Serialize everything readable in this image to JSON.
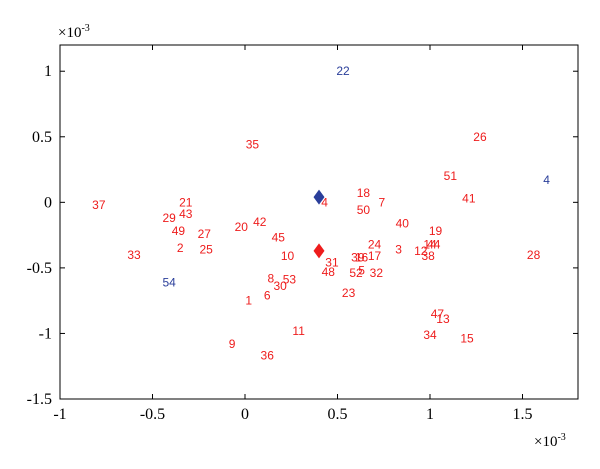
{
  "chart_data": {
    "type": "scatter",
    "xlim": [
      -1.0,
      1.8
    ],
    "ylim": [
      -1.5,
      1.2
    ],
    "x_ticks": [
      -1,
      -0.5,
      0,
      0.5,
      1,
      1.5
    ],
    "x_tick_labels": [
      "-1",
      "-0.5",
      "0",
      "0.5",
      "1",
      "1.5"
    ],
    "y_ticks": [
      -1.5,
      -1,
      -0.5,
      0,
      0.5,
      1
    ],
    "y_tick_labels": [
      "-1.5",
      "-1",
      "-0.5",
      "0",
      "0.5",
      "1"
    ],
    "x_exponent": "×10",
    "x_exponent_power": "-3",
    "y_exponent": "×10",
    "y_exponent_power": "-3",
    "grid": false,
    "colors": {
      "red": "#ee1c1c",
      "blue": "#2a3e9a"
    },
    "points": [
      {
        "label": "1",
        "x": 0.02,
        "y": -0.75,
        "color": "red"
      },
      {
        "label": "2",
        "x": -0.35,
        "y": -0.35,
        "color": "red"
      },
      {
        "label": "3",
        "x": 0.83,
        "y": -0.36,
        "color": "red"
      },
      {
        "label": "4",
        "x": 0.43,
        "y": 0.0,
        "color": "red"
      },
      {
        "label": "4",
        "x": 1.63,
        "y": 0.17,
        "color": "blue"
      },
      {
        "label": "5",
        "x": 0.63,
        "y": -0.52,
        "color": "red"
      },
      {
        "label": "6",
        "x": 0.12,
        "y": -0.71,
        "color": "red"
      },
      {
        "label": "7",
        "x": 0.74,
        "y": 0.0,
        "color": "red"
      },
      {
        "label": "8",
        "x": 0.14,
        "y": -0.58,
        "color": "red"
      },
      {
        "label": "9",
        "x": -0.07,
        "y": -1.08,
        "color": "red"
      },
      {
        "label": "10",
        "x": 0.23,
        "y": -0.41,
        "color": "red"
      },
      {
        "label": "11",
        "x": 0.29,
        "y": -0.98,
        "color": "red"
      },
      {
        "label": "12",
        "x": 0.95,
        "y": -0.37,
        "color": "red"
      },
      {
        "label": "13",
        "x": 1.07,
        "y": -0.89,
        "color": "red"
      },
      {
        "label": "14",
        "x": 1.0,
        "y": -0.32,
        "color": "red"
      },
      {
        "label": "15",
        "x": 1.2,
        "y": -1.04,
        "color": "red"
      },
      {
        "label": "16",
        "x": 0.63,
        "y": -0.42,
        "color": "red"
      },
      {
        "label": "17",
        "x": 0.7,
        "y": -0.41,
        "color": "red"
      },
      {
        "label": "18",
        "x": 0.64,
        "y": 0.07,
        "color": "red"
      },
      {
        "label": "19",
        "x": 1.03,
        "y": -0.22,
        "color": "red"
      },
      {
        "label": "20",
        "x": -0.02,
        "y": -0.19,
        "color": "red"
      },
      {
        "label": "21",
        "x": -0.32,
        "y": 0.0,
        "color": "red"
      },
      {
        "label": "22",
        "x": 0.53,
        "y": 1.0,
        "color": "blue"
      },
      {
        "label": "23",
        "x": 0.56,
        "y": -0.69,
        "color": "red"
      },
      {
        "label": "24",
        "x": 0.7,
        "y": -0.32,
        "color": "red"
      },
      {
        "label": "25",
        "x": -0.21,
        "y": -0.36,
        "color": "red"
      },
      {
        "label": "26",
        "x": 1.27,
        "y": 0.5,
        "color": "red"
      },
      {
        "label": "27",
        "x": -0.22,
        "y": -0.24,
        "color": "red"
      },
      {
        "label": "28",
        "x": 1.56,
        "y": -0.4,
        "color": "red"
      },
      {
        "label": "29",
        "x": -0.41,
        "y": -0.12,
        "color": "red"
      },
      {
        "label": "30",
        "x": 0.19,
        "y": -0.64,
        "color": "red"
      },
      {
        "label": "31",
        "x": 0.47,
        "y": -0.46,
        "color": "red"
      },
      {
        "label": "32",
        "x": 0.71,
        "y": -0.54,
        "color": "red"
      },
      {
        "label": "33",
        "x": -0.6,
        "y": -0.4,
        "color": "red"
      },
      {
        "label": "34",
        "x": 1.0,
        "y": -1.01,
        "color": "red"
      },
      {
        "label": "35",
        "x": 0.04,
        "y": 0.44,
        "color": "red"
      },
      {
        "label": "36",
        "x": 0.12,
        "y": -1.17,
        "color": "red"
      },
      {
        "label": "37",
        "x": -0.79,
        "y": -0.02,
        "color": "red"
      },
      {
        "label": "38",
        "x": 0.99,
        "y": -0.41,
        "color": "red"
      },
      {
        "label": "39",
        "x": 0.61,
        "y": -0.42,
        "color": "red"
      },
      {
        "label": "40",
        "x": 0.85,
        "y": -0.16,
        "color": "red"
      },
      {
        "label": "41",
        "x": 1.21,
        "y": 0.03,
        "color": "red"
      },
      {
        "label": "42",
        "x": 0.08,
        "y": -0.15,
        "color": "red"
      },
      {
        "label": "43",
        "x": -0.32,
        "y": -0.09,
        "color": "red"
      },
      {
        "label": "44",
        "x": 1.02,
        "y": -0.32,
        "color": "red"
      },
      {
        "label": "45",
        "x": 0.18,
        "y": -0.27,
        "color": "red"
      },
      {
        "label": "47",
        "x": 1.04,
        "y": -0.85,
        "color": "red"
      },
      {
        "label": "48",
        "x": 0.45,
        "y": -0.53,
        "color": "red"
      },
      {
        "label": "49",
        "x": -0.36,
        "y": -0.22,
        "color": "red"
      },
      {
        "label": "50",
        "x": 0.64,
        "y": -0.06,
        "color": "red"
      },
      {
        "label": "51",
        "x": 1.11,
        "y": 0.2,
        "color": "red"
      },
      {
        "label": "52",
        "x": 0.6,
        "y": -0.54,
        "color": "red"
      },
      {
        "label": "53",
        "x": 0.24,
        "y": -0.59,
        "color": "red"
      },
      {
        "label": "54",
        "x": -0.41,
        "y": -0.61,
        "color": "blue"
      }
    ],
    "markers": [
      {
        "shape": "diamond",
        "x": 0.4,
        "y": 0.04,
        "color": "blue"
      },
      {
        "shape": "diamond",
        "x": 0.4,
        "y": -0.37,
        "color": "red"
      }
    ]
  }
}
